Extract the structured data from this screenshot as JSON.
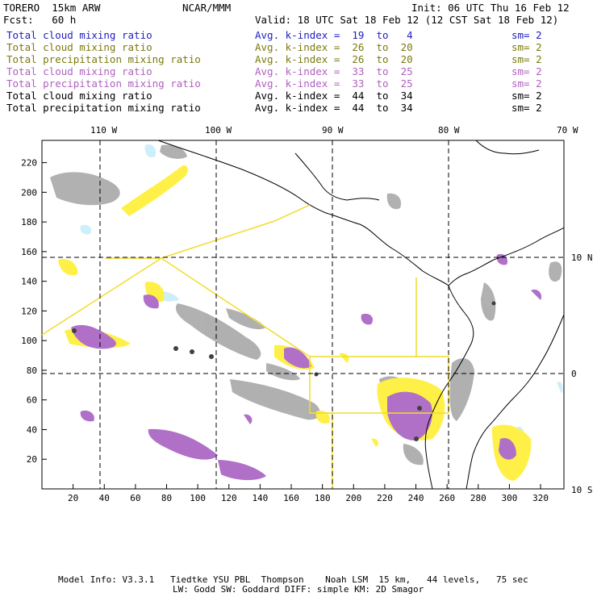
{
  "header": {
    "model": "TORERO  15km ARW",
    "org": "NCAR/MMM",
    "init": "Init: 06 UTC Thu 16 Feb 12",
    "fcst": "Fcst:   60 h",
    "valid": "Valid: 18 UTC Sat 18 Feb 12 (12 CST Sat 18 Feb 12)"
  },
  "legend": [
    {
      "field": "Total cloud mixing ratio",
      "kindex": "Avg. k-index =  19  to   4",
      "sm": "sm= 2",
      "color": "#2020c0"
    },
    {
      "field": "Total cloud mixing ratio",
      "kindex": "Avg. k-index =  26  to  20",
      "sm": "sm= 2",
      "color": "#7a7a10"
    },
    {
      "field": "Total precipitation mixing ratio",
      "kindex": "Avg. k-index =  26  to  20",
      "sm": "sm= 2",
      "color": "#7a7a10"
    },
    {
      "field": "Total cloud mixing ratio",
      "kindex": "Avg. k-index =  33  to  25",
      "sm": "sm= 2",
      "color": "#b060c0"
    },
    {
      "field": "Total precipitation mixing ratio",
      "kindex": "Avg. k-index =  33  to  25",
      "sm": "sm= 2",
      "color": "#b060c0"
    },
    {
      "field": "Total cloud mixing ratio",
      "kindex": "Avg. k-index =  44  to  34",
      "sm": "sm= 2",
      "color": "#000000"
    },
    {
      "field": "Total precipitation mixing ratio",
      "kindex": "Avg. k-index =  44  to  34",
      "sm": "sm= 2",
      "color": "#000000"
    }
  ],
  "map": {
    "lon_labels": [
      "110 W",
      "100 W",
      "90 W",
      "80 W",
      "70 W"
    ],
    "lat_labels": [
      "10 N",
      "0",
      "10 S"
    ],
    "x_ticks": [
      "20",
      "40",
      "60",
      "80",
      "100",
      "120",
      "140",
      "160",
      "180",
      "200",
      "220",
      "240",
      "260",
      "280",
      "300",
      "320"
    ],
    "y_ticks": [
      "220",
      "200",
      "180",
      "160",
      "140",
      "120",
      "100",
      "80",
      "60",
      "40",
      "20"
    ]
  },
  "footer": {
    "line1": "Model Info: V3.3.1   Tiedtke YSU PBL  Thompson    Noah LSM  15 km,   44 levels,   75 sec",
    "line2": "LW: Godd SW: Goddard DIFF: simple KM: 2D Smagor"
  }
}
